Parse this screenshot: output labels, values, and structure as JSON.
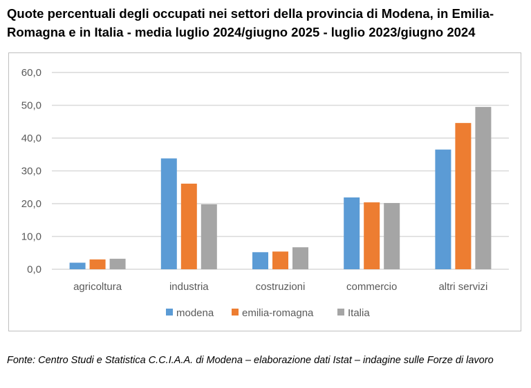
{
  "chart_data": {
    "type": "bar",
    "title": "Quote percentuali degli occupati nei settori della provincia di Modena, in Emilia-Romagna e in Italia - media luglio 2024/giugno 2025 - luglio 2023/giugno 2024",
    "categories": [
      "agricoltura",
      "industria",
      "costruzioni",
      "commercio",
      "altri servizi"
    ],
    "series": [
      {
        "name": "modena",
        "color": "#5b9bd5",
        "values": [
          2.0,
          33.8,
          5.2,
          21.9,
          36.5
        ]
      },
      {
        "name": "emilia-romagna",
        "color": "#ed7d31",
        "values": [
          3.0,
          26.1,
          5.4,
          20.4,
          44.6
        ]
      },
      {
        "name": "Italia",
        "color": "#a5a5a5",
        "values": [
          3.2,
          19.8,
          6.7,
          20.2,
          49.5
        ]
      }
    ],
    "yticks": [
      "0,0",
      "10,0",
      "20,0",
      "30,0",
      "40,0",
      "50,0",
      "60,0"
    ],
    "ylim": [
      0,
      60
    ],
    "grid": true,
    "legend": "bottom",
    "xlabel": "",
    "ylabel": ""
  },
  "source": "Fonte: Centro Studi e Statistica C.C.I.A.A. di Modena – elaborazione dati Istat – indagine sulle Forze di lavoro"
}
